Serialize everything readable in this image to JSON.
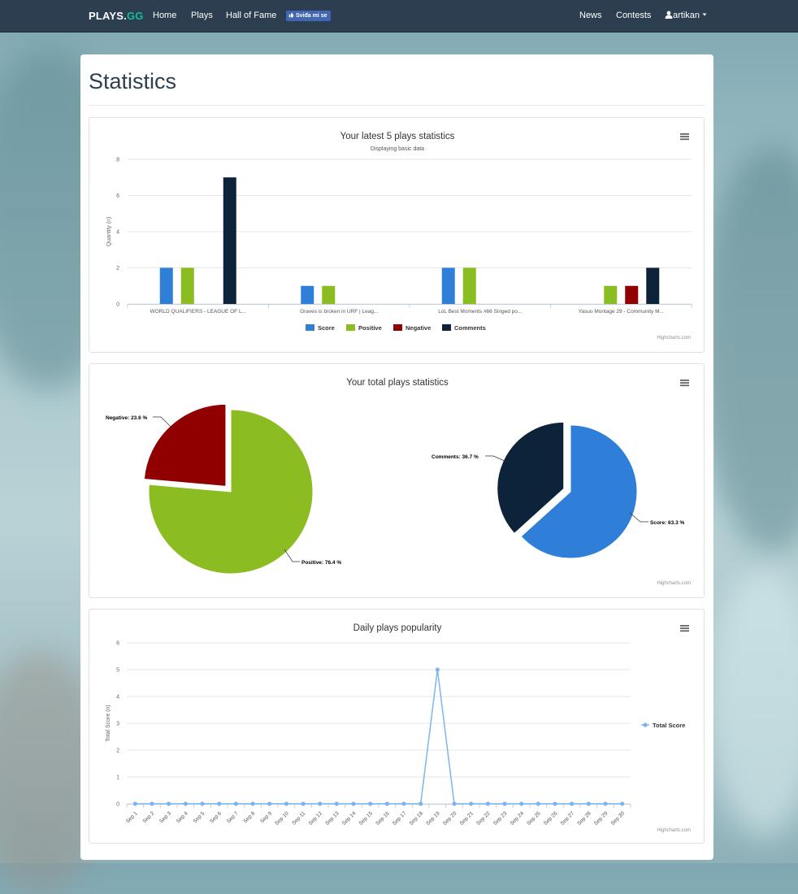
{
  "nav": {
    "brand_main": "PLAYS.",
    "brand_accent": "GG",
    "home": "Home",
    "plays": "Plays",
    "hall_of_fame": "Hall of Fame",
    "fb_like": "Sviđa mi se",
    "news": "News",
    "contests": "Contests",
    "user": "artikan",
    "user_icon": "user-icon",
    "caret_icon": "caret-down-icon"
  },
  "page": {
    "title": "Statistics"
  },
  "colors": {
    "score": "#2f7ed8",
    "positive": "#8bbc21",
    "negative": "#910000",
    "comments": "#0d233a",
    "line": "#7cb5ec"
  },
  "credits": "Highcharts.com",
  "menu_icon": "hamburger-menu-icon",
  "chart_data": [
    {
      "type": "bar",
      "title": "Your latest 5 plays statistics",
      "subtitle": "Displaying basic data",
      "xlabel": "",
      "ylabel": "Quantity (n)",
      "ylim": [
        0,
        8
      ],
      "yticks": [
        0,
        2,
        4,
        6,
        8
      ],
      "categories": [
        "WORLD QUALIFIERS - LEAGUE OF L...",
        "Graves is broken in URF | Leag...",
        "LoL Best Moments #66 Singed po...",
        "Yasuo Montage 29 - Community M..."
      ],
      "series": [
        {
          "name": "Score",
          "values": [
            2,
            1,
            2,
            0
          ]
        },
        {
          "name": "Positive",
          "values": [
            2,
            1,
            2,
            1
          ]
        },
        {
          "name": "Negative",
          "values": [
            0,
            0,
            0,
            1
          ]
        },
        {
          "name": "Comments",
          "values": [
            7,
            0,
            0,
            2
          ]
        }
      ],
      "legend": "bottom-center"
    },
    {
      "type": "pie",
      "title": "Your total plays statistics",
      "pies": [
        {
          "slices": [
            {
              "name": "Negative",
              "value": 23.6,
              "label": "Negative: 23.6 %"
            },
            {
              "name": "Positive",
              "value": 76.4,
              "label": "Positive: 76.4 %"
            }
          ]
        },
        {
          "slices": [
            {
              "name": "Comments",
              "value": 36.7,
              "label": "Comments: 36.7 %"
            },
            {
              "name": "Score",
              "value": 63.3,
              "label": "Score: 63.3 %"
            }
          ]
        }
      ]
    },
    {
      "type": "line",
      "title": "Daily plays popularity",
      "xlabel": "",
      "ylabel": "Total Score (n)",
      "ylim": [
        0,
        6
      ],
      "yticks": [
        0,
        1,
        2,
        3,
        4,
        5,
        6
      ],
      "x": [
        "Sep 1",
        "Sep 2",
        "Sep 3",
        "Sep 4",
        "Sep 5",
        "Sep 6",
        "Sep 7",
        "Sep 8",
        "Sep 9",
        "Sep 10",
        "Sep 11",
        "Sep 12",
        "Sep 13",
        "Sep 14",
        "Sep 15",
        "Sep 16",
        "Sep 17",
        "Sep 18",
        "Sep 19",
        "Sep 20",
        "Sep 21",
        "Sep 22",
        "Sep 23",
        "Sep 24",
        "Sep 25",
        "Sep 26",
        "Sep 27",
        "Sep 28",
        "Sep 29",
        "Sep 30"
      ],
      "series": [
        {
          "name": "Total Score",
          "values": [
            0,
            0,
            0,
            0,
            0,
            0,
            0,
            0,
            0,
            0,
            0,
            0,
            0,
            0,
            0,
            0,
            0,
            0,
            5,
            0,
            0,
            0,
            0,
            0,
            0,
            0,
            0,
            0,
            0,
            0
          ]
        }
      ],
      "legend": "right"
    }
  ]
}
